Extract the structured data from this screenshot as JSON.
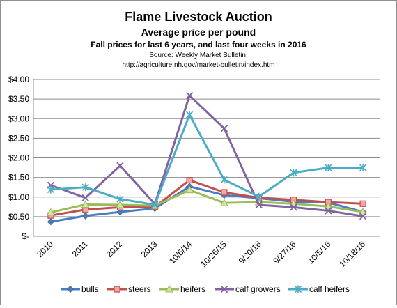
{
  "chart_data": {
    "type": "line",
    "title": "Flame Livestock Auction",
    "subtitle": "Average price per pound",
    "subtitle2": "Fall prices for last 6 years, and last four weeks in 2016",
    "source_line1": "Source: Weekly Market Bulletin,",
    "source_line2": "http://agriculture.nh.gov/market-bulletin/index.htm",
    "categories": [
      "2010",
      "2011",
      "2012",
      "2013",
      "10/5/14",
      "10/26/15",
      "9/20/16",
      "9/27/16",
      "10/5/16",
      "10/18/16"
    ],
    "ylim": [
      0,
      4
    ],
    "ytick_values": [
      0,
      0.5,
      1,
      1.5,
      2,
      2.5,
      3,
      3.5,
      4
    ],
    "ytick_labels": [
      "$-",
      "$0.50",
      "$1.00",
      "$1.50",
      "$2.00",
      "$2.50",
      "$3.00",
      "$3.50",
      "$4.00"
    ],
    "grid": "horizontal",
    "legend_position": "bottom",
    "series": [
      {
        "name": "bulls",
        "color": "#4a7cc0",
        "marker": "diamond",
        "values": [
          0.37,
          0.52,
          0.62,
          0.71,
          1.27,
          1.05,
          0.97,
          0.88,
          0.86,
          0.62
        ]
      },
      {
        "name": "steers",
        "color": "#c0504d",
        "marker": "square",
        "values": [
          0.53,
          0.68,
          0.74,
          0.75,
          1.43,
          1.12,
          0.98,
          0.93,
          0.87,
          0.83
        ]
      },
      {
        "name": "heifers",
        "color": "#9bbb59",
        "marker": "triangle",
        "values": [
          0.61,
          0.81,
          0.8,
          0.78,
          1.18,
          0.85,
          0.87,
          0.83,
          0.76,
          0.62
        ]
      },
      {
        "name": "calf growers",
        "color": "#8064a2",
        "marker": "x",
        "values": [
          1.3,
          0.98,
          1.8,
          0.82,
          3.59,
          2.75,
          0.8,
          0.74,
          0.65,
          0.51
        ]
      },
      {
        "name": "calf heifers",
        "color": "#4bacc6",
        "marker": "star",
        "values": [
          1.19,
          1.25,
          0.95,
          0.8,
          3.1,
          1.44,
          1.01,
          1.62,
          1.75,
          1.75
        ]
      }
    ]
  }
}
